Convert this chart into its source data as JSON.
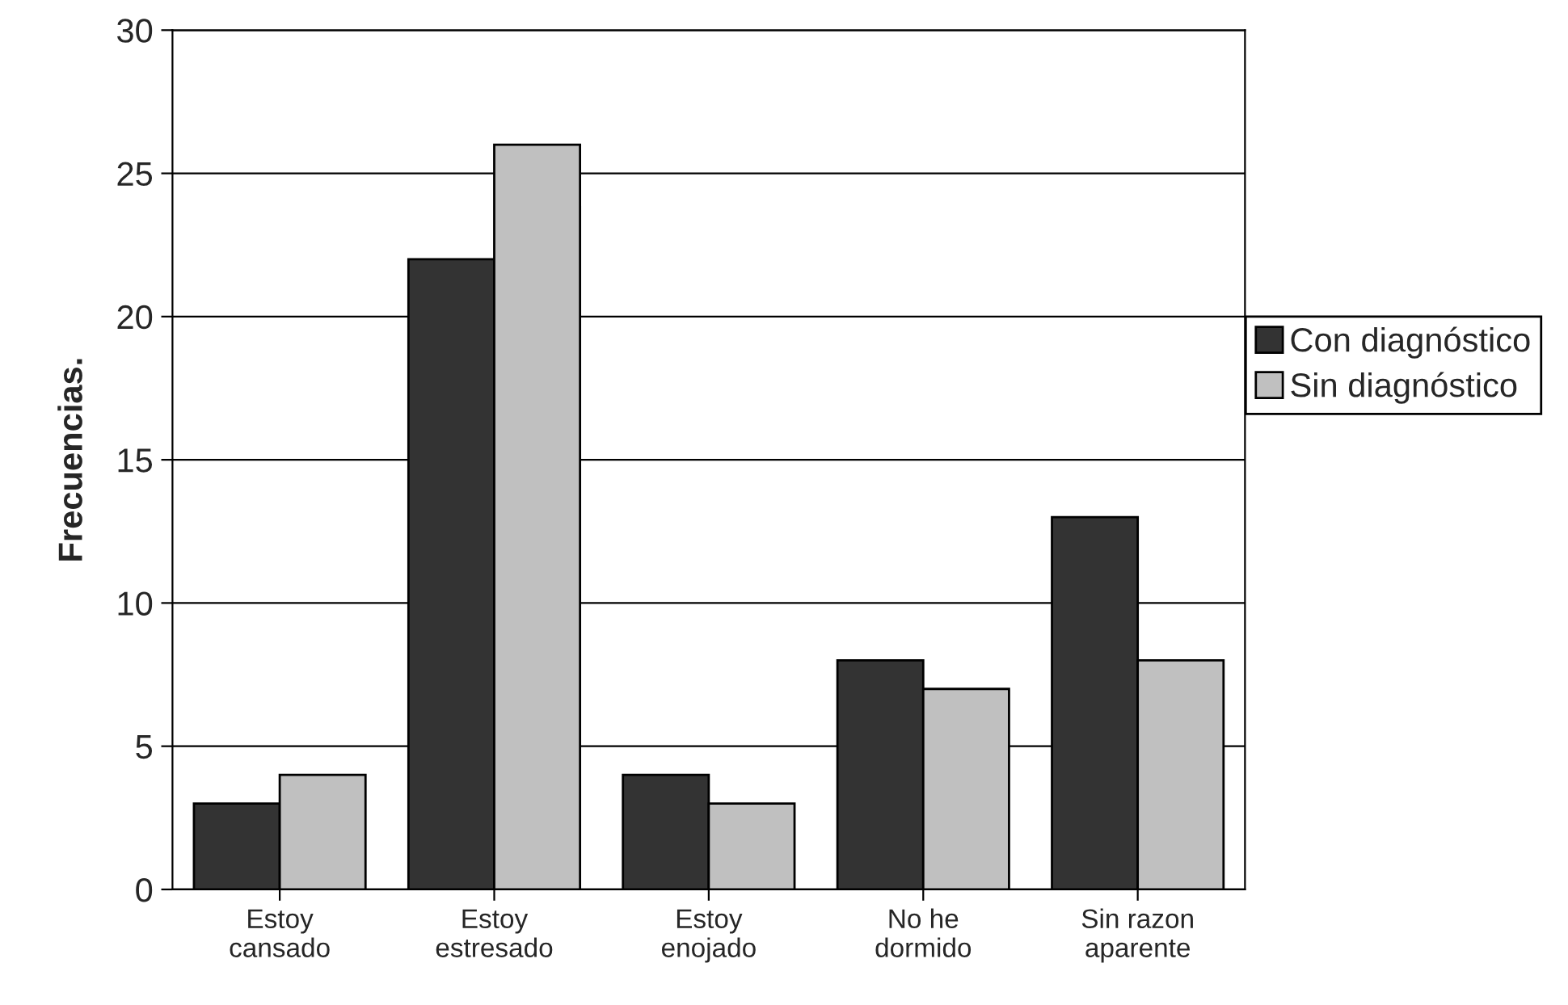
{
  "chart_data": {
    "type": "bar",
    "ylabel": "Frecuencias.",
    "categories": [
      "Estoy\ncansado",
      "Estoy\nestresado",
      "Estoy\nenojado",
      "No he\ndormido",
      "Sin razon\naparente"
    ],
    "series": [
      {
        "name": "Con diagnóstico",
        "color": "#333333",
        "values": [
          3,
          22,
          4,
          8,
          13
        ]
      },
      {
        "name": "Sin diagnóstico",
        "color": "#c0c0c0",
        "values": [
          4,
          26,
          3,
          7,
          8
        ]
      }
    ],
    "ylim": [
      0,
      30
    ],
    "yticks": [
      0,
      5,
      10,
      15,
      20,
      25,
      30
    ],
    "grid": "y",
    "legend": "right"
  }
}
